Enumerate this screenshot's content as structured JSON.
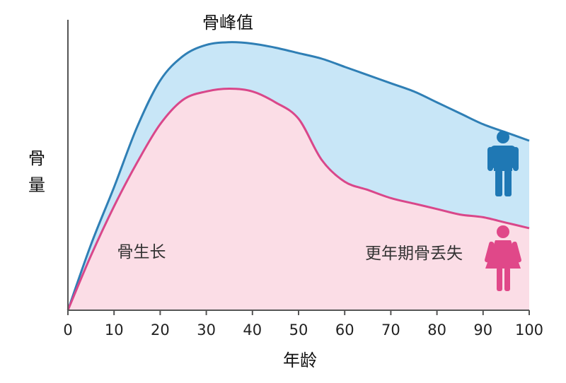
{
  "chart_data": {
    "type": "area",
    "xlabel": "年龄",
    "ylabel": "骨量",
    "xlim": [
      0,
      100
    ],
    "x_ticks": [
      "0",
      "10",
      "20",
      "30",
      "40",
      "50",
      "60",
      "70",
      "80",
      "90",
      "100"
    ],
    "ylim": [
      0,
      100
    ],
    "grid": false,
    "annotations": {
      "peak": "骨峰值",
      "growth": "骨生长",
      "loss": "更年期骨丢失"
    },
    "series": [
      {
        "color": "#2f7fb5",
        "fill": "#c8e6f7",
        "x": [
          0,
          5,
          10,
          15,
          20,
          25,
          30,
          35,
          40,
          45,
          50,
          55,
          60,
          65,
          70,
          75,
          80,
          85,
          90,
          95,
          100
        ],
        "values": [
          0,
          24,
          45,
          67,
          84,
          93,
          97,
          98,
          97.5,
          96,
          94,
          92,
          89,
          86,
          83,
          80,
          76,
          72,
          68,
          65,
          62
        ]
      },
      {
        "color": "#d9478a",
        "fill": "#fbdde6",
        "x": [
          0,
          5,
          10,
          15,
          20,
          25,
          30,
          35,
          40,
          45,
          50,
          55,
          60,
          65,
          70,
          75,
          80,
          85,
          90,
          95,
          100
        ],
        "values": [
          0,
          20,
          38,
          54,
          68,
          77,
          80,
          81,
          80,
          76,
          70,
          55,
          47,
          44,
          41,
          39,
          37,
          35,
          34,
          32,
          30
        ]
      }
    ],
    "icons": [
      "male-figure-icon",
      "female-figure-icon"
    ]
  }
}
